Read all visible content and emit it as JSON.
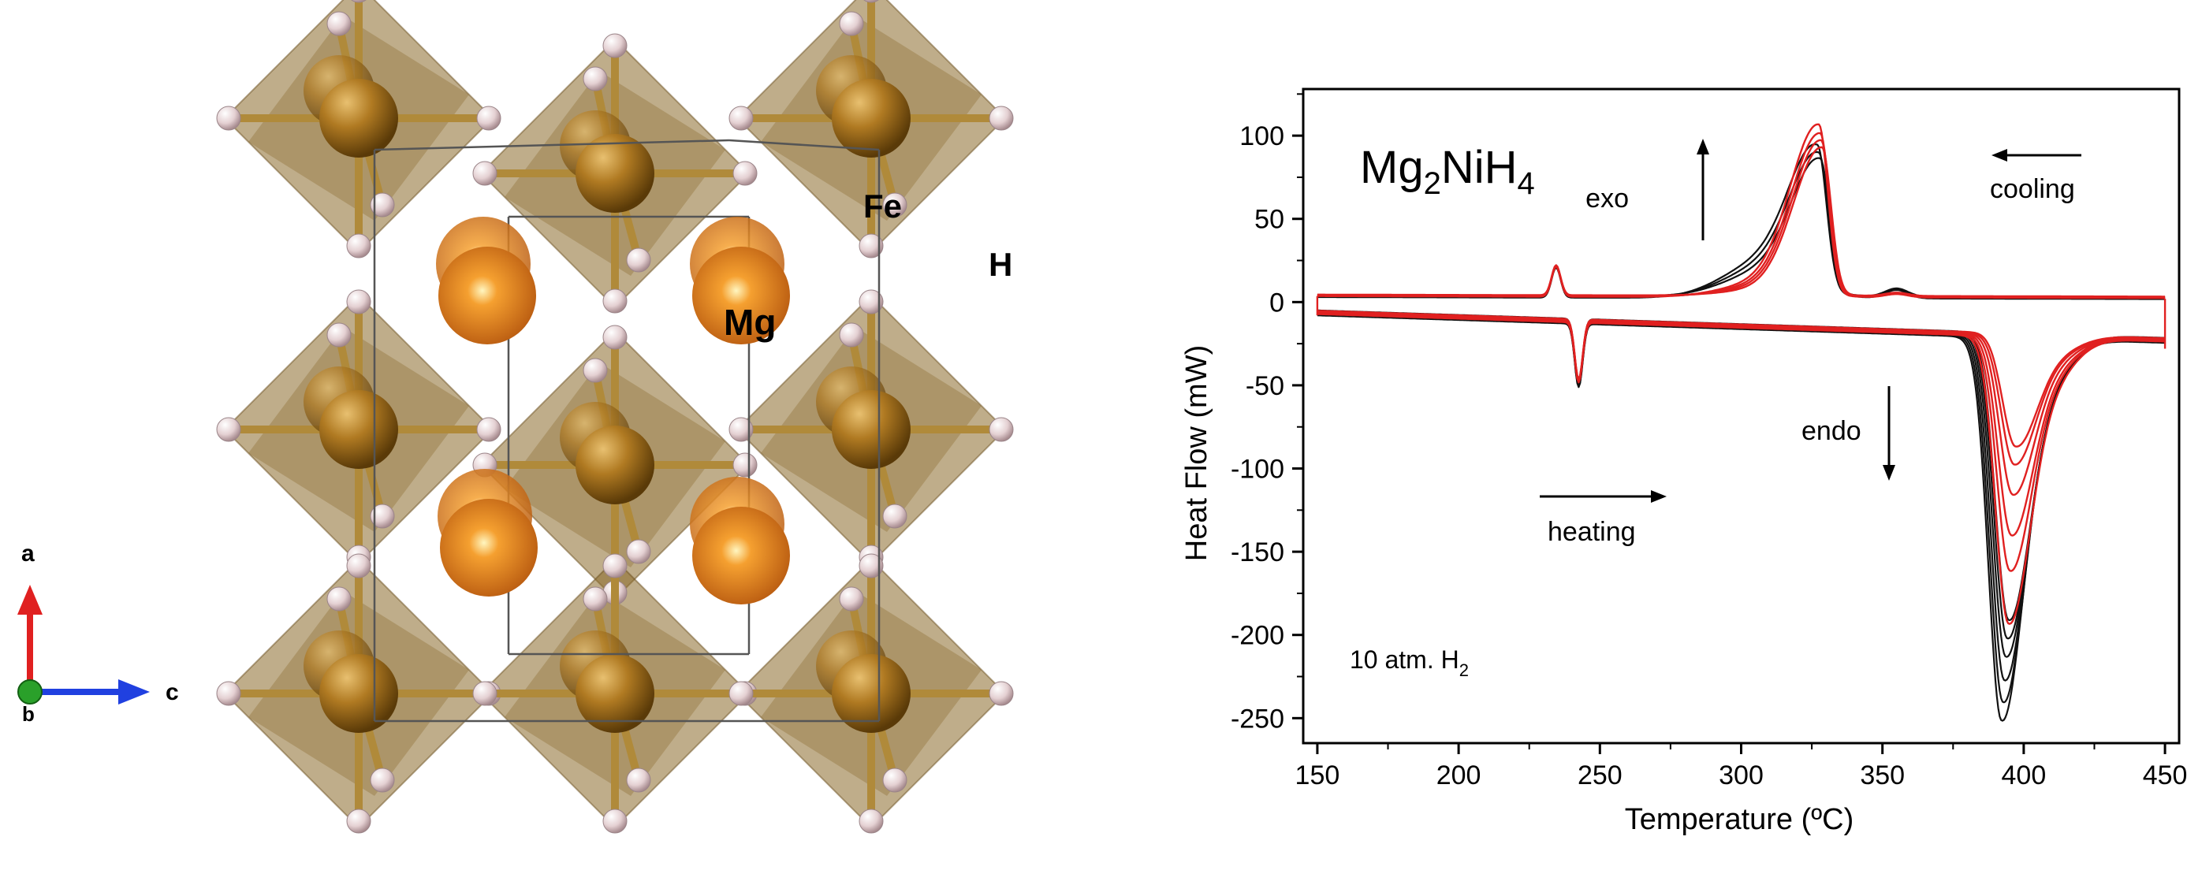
{
  "crystal_structure": {
    "atom_labels": {
      "fe": "Fe",
      "h": "H",
      "mg": "Mg"
    },
    "axis_labels": {
      "a": "a",
      "b": "b",
      "c": "c"
    },
    "colors": {
      "octahedron": "#8a6a2a",
      "fe_atom": "#a8741c",
      "mg_atom": "#e8892a",
      "h_atom": "#e8d8d8",
      "bond": "#b08a3a",
      "axis_a": "#e02020",
      "axis_b": "#2aa02a",
      "axis_c": "#2040e0"
    }
  },
  "chart_data": {
    "type": "line",
    "title": "Mg2NiH4",
    "title_parts": {
      "base1": "Mg",
      "sub1": "2",
      "base2": "NiH",
      "sub2": "4"
    },
    "xlabel": "Temperature (ºC)",
    "ylabel": "Heat Flow (mW)",
    "xlim": [
      145,
      455
    ],
    "ylim": [
      -265,
      128
    ],
    "xticks": [
      150,
      200,
      250,
      300,
      350,
      400,
      450
    ],
    "yticks": [
      100,
      50,
      0,
      -50,
      -100,
      -150,
      -200,
      -250
    ],
    "annotations": {
      "exo": "exo",
      "cooling": "cooling",
      "endo": "endo",
      "heating": "heating",
      "pressure_base": "10 atm. H",
      "pressure_sub": "2"
    },
    "colors": {
      "black_series": "#111111",
      "red_series": "#e02020",
      "axis": "#000000"
    },
    "series": [
      {
        "name": "heating_black",
        "color": "black",
        "x": [
          150,
          200,
          235,
          240,
          242,
          244,
          247,
          250,
          300,
          350,
          370,
          380,
          385,
          388,
          390,
          392,
          394,
          396,
          398,
          402,
          410,
          430,
          450
        ],
        "peak_minima": [
          -250,
          -240,
          -228,
          -215,
          -205,
          -195
        ],
        "peak_centers": [
          392,
          392.5,
          393,
          393.5,
          394,
          394.5
        ]
      },
      {
        "name": "heating_red",
        "color": "red",
        "peak_minima": [
          -195,
          -165,
          -145,
          -122,
          -105,
          -95
        ],
        "peak_centers": [
          394.5,
          395,
          395.5,
          396,
          396.5,
          397
        ]
      },
      {
        "name": "cooling_black",
        "color": "black",
        "peak_maxima": [
          97,
          93,
          90
        ],
        "peak_centers": [
          327,
          327.5,
          328
        ]
      },
      {
        "name": "cooling_red",
        "color": "red",
        "peak_maxima": [
          113,
          108,
          104,
          100
        ],
        "peak_centers": [
          327.5,
          328,
          328.3,
          328.6
        ]
      }
    ]
  }
}
